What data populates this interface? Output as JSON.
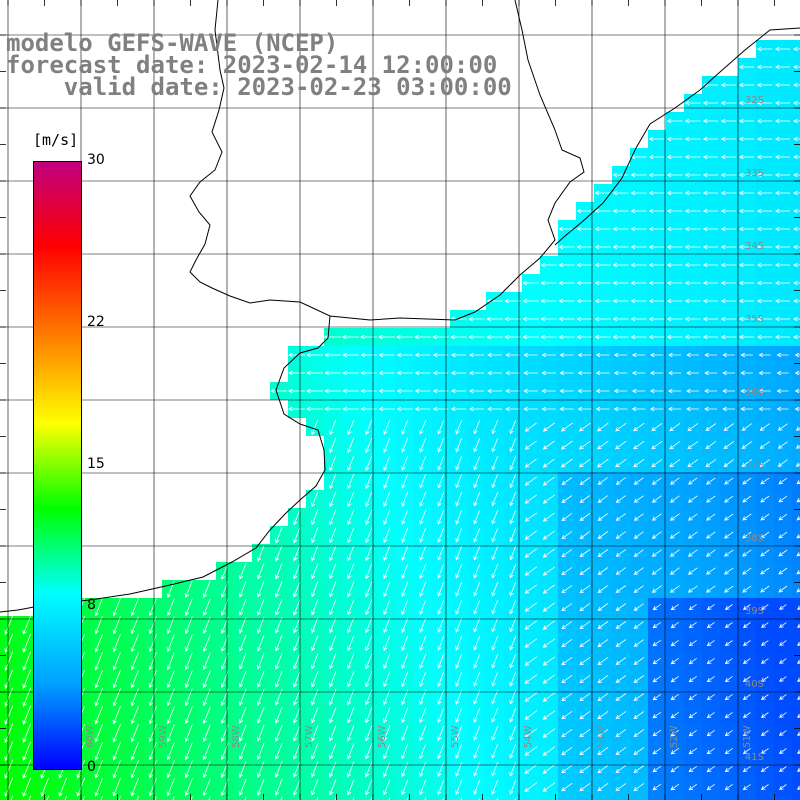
{
  "title": {
    "line1": "modelo GEFS-WAVE (NCEP)",
    "line2": "forecast date: 2023-02-14 12:00:00",
    "line3": "    valid date: 2023-02-23 03:00:00"
  },
  "colorbar": {
    "unit": "[m/s]",
    "min": 0,
    "max": 30,
    "ticks": [
      {
        "label": "30",
        "value": 30
      },
      {
        "label": "22",
        "value": 22
      },
      {
        "label": "15",
        "value": 15
      },
      {
        "label": "8",
        "value": 8
      },
      {
        "label": "0",
        "value": 0
      }
    ],
    "colors": [
      "#0000ff",
      "#00a0ff",
      "#00ffff",
      "#00ff00",
      "#ffff00",
      "#ff8000",
      "#ff0000",
      "#c0007f"
    ]
  },
  "map": {
    "lat_range": [
      -41.6,
      -30.4
    ],
    "lon_range": [
      -61.6,
      -50.6
    ],
    "lat_labels": [
      "32S",
      "33S",
      "34S",
      "35S",
      "36S",
      "37S",
      "38S",
      "39S",
      "40S",
      "41S"
    ],
    "lon_labels": [
      "60W",
      "59W",
      "58W",
      "57W",
      "56W",
      "55W",
      "54W",
      "53W",
      "52W",
      "51W"
    ],
    "land_color": "#ffffff",
    "coast_color": "#000000",
    "grid_color": "#000000",
    "arrow_color": "#ffffff"
  }
}
